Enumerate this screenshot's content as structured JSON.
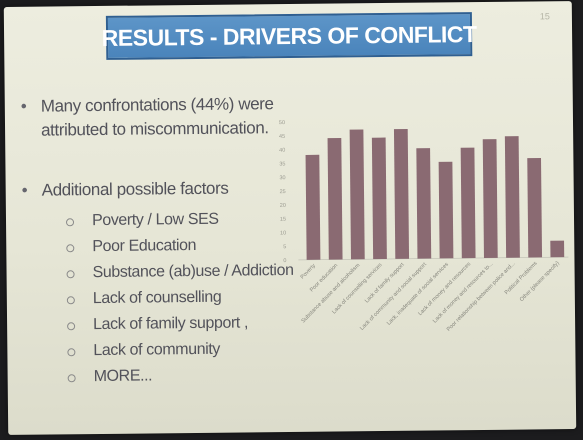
{
  "slide": {
    "title": "RESULTS - DRIVERS OF CONFLICT",
    "slide_number": "15",
    "bullets": [
      {
        "text": "Many confrontations (44%) were attributed to miscommunication."
      },
      {
        "text": "Additional possible factors"
      }
    ],
    "sub_bullets": [
      "Poverty / Low SES",
      "Poor Education",
      "Substance (ab)use / Addiction",
      "Lack of counselling",
      "Lack of family support ,",
      "Lack of community",
      "MORE..."
    ]
  },
  "colors": {
    "title_bg": "#4a84bb",
    "bar": "#8a6a72",
    "text": "#52525a"
  },
  "chart_data": {
    "type": "bar",
    "categories": [
      "Poverty",
      "Poor education",
      "Substance abuse and alcoholism",
      "Lack of counselling services",
      "Lack of family support",
      "Lack of community and social support",
      "Lack, inadequate of social services",
      "Lack of money and resources",
      "Lack of money and resources to...",
      "Poor relationship between police and...",
      "Political Problems",
      "Other (please specify)"
    ],
    "values": [
      38,
      44,
      47,
      44,
      47,
      40,
      35,
      40,
      43,
      44,
      36,
      6
    ],
    "ylim": [
      0,
      50
    ],
    "yticks": [
      "0",
      "5",
      "10",
      "15",
      "20",
      "25",
      "30",
      "35",
      "40",
      "45",
      "50"
    ],
    "grid": false,
    "legend": "none"
  }
}
